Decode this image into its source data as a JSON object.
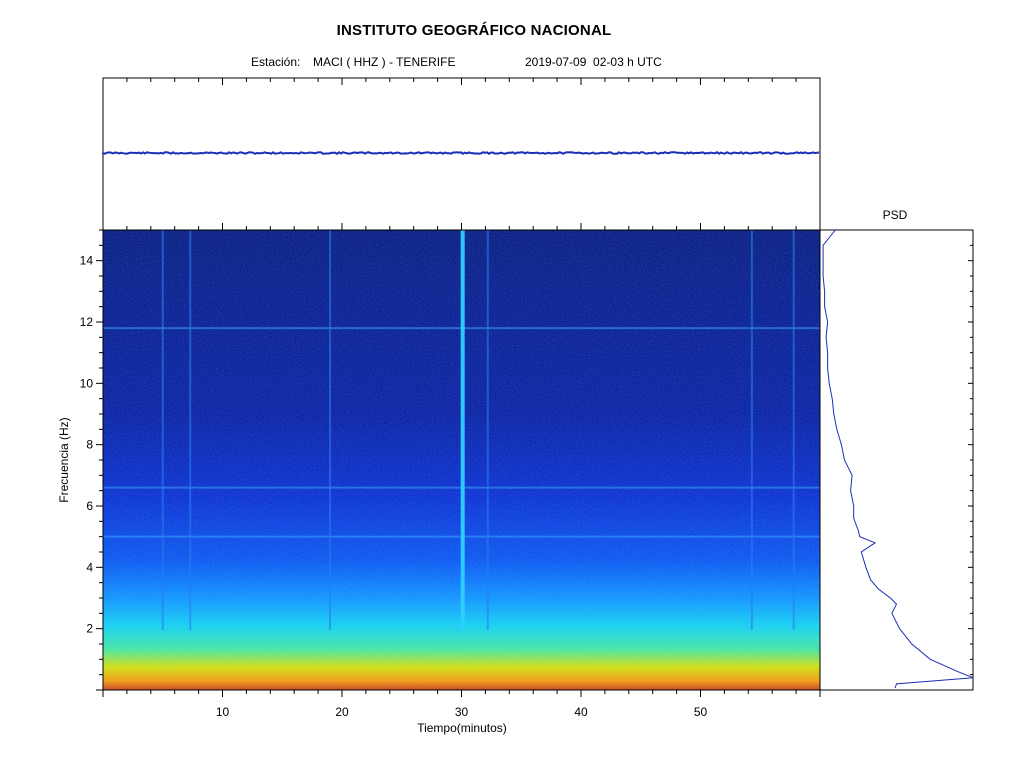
{
  "header": {
    "title": "INSTITUTO GEOGRÁFICO NACIONAL",
    "station_prefix": "Estación:",
    "station": "MACI ( HHZ ) - TENERIFE",
    "datetime": "2019-07-09  02-03 h UTC"
  },
  "psd_title": "PSD",
  "chart_data": [
    {
      "type": "line",
      "name": "seismogram",
      "xlim": [
        0,
        60
      ],
      "description_value": "flat trace",
      "color": "#1a2fb8"
    },
    {
      "type": "heatmap",
      "name": "spectrogram",
      "xlabel": "Tiempo(minutos)",
      "ylabel": "Frecuencia  (Hz)",
      "xlim": [
        0,
        60
      ],
      "ylim": [
        0,
        15
      ],
      "xticks": [
        "10",
        "20",
        "30",
        "40",
        "50"
      ],
      "yticks": [
        "2",
        "4",
        "6",
        "8",
        "10",
        "12",
        "14"
      ],
      "colormap": [
        "#00007a",
        "#0010d0",
        "#0050ff",
        "#00a0ff",
        "#00ffff",
        "#80ff80",
        "#ffff00",
        "#ff8000",
        "#ff0000"
      ],
      "vertical_events_min": [
        5,
        7.3,
        19,
        30.1,
        32.2,
        54.3,
        57.8
      ],
      "horizontal_lines_hz": [
        5,
        6.6,
        11.8
      ]
    },
    {
      "type": "line",
      "name": "PSD",
      "freq_hz": [
        0.2,
        0.4,
        0.6,
        1,
        1.5,
        2,
        2.5,
        2.8,
        3,
        3.3,
        3.6,
        4,
        4.5,
        4.8,
        5,
        5.2,
        5.6,
        6,
        6.5,
        7,
        7.5,
        8,
        8.5,
        9,
        9.5,
        10,
        10.5,
        11,
        11.5,
        12,
        12.5,
        13,
        13.5,
        14,
        14.5,
        15
      ],
      "power_rel": [
        0.5,
        1.0,
        0.9,
        0.72,
        0.6,
        0.52,
        0.47,
        0.5,
        0.46,
        0.38,
        0.33,
        0.3,
        0.27,
        0.36,
        0.26,
        0.25,
        0.22,
        0.22,
        0.2,
        0.21,
        0.16,
        0.14,
        0.11,
        0.09,
        0.08,
        0.06,
        0.05,
        0.05,
        0.04,
        0.05,
        0.03,
        0.03,
        0.02,
        0.02,
        0.02,
        0.1
      ],
      "color": "#1a2fb8"
    }
  ]
}
